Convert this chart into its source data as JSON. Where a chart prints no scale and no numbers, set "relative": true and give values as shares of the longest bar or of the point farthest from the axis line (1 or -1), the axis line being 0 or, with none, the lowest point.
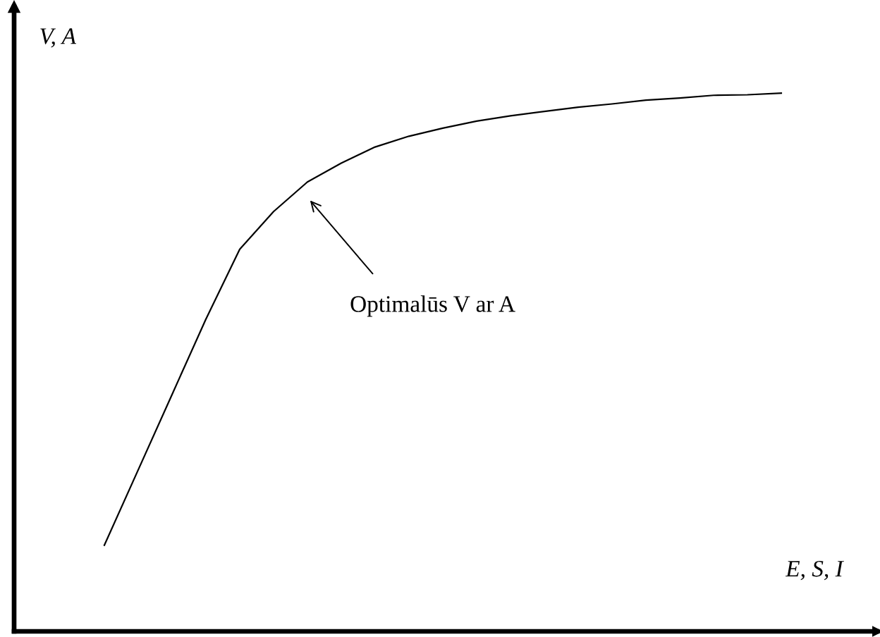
{
  "chart_data": {
    "type": "line",
    "relative": true,
    "xlabel": "E, S, I",
    "ylabel": "V, A",
    "categories": [
      null,
      null,
      null,
      null,
      null,
      null,
      null,
      null,
      null,
      null,
      null,
      null,
      null,
      null,
      null,
      null,
      null,
      null,
      null,
      null,
      null
    ],
    "series": [
      {
        "color": "#000000",
        "values": [
          0.16,
          0.3,
          0.44,
          0.58,
          0.71,
          0.78,
          0.835,
          0.87,
          0.9,
          0.92,
          0.935,
          0.948,
          0.958,
          0.966,
          0.974,
          0.98,
          0.987,
          0.991,
          0.996,
          0.997,
          1.0
        ]
      }
    ],
    "annotations": [
      "Optimalūs V ar A"
    ]
  }
}
